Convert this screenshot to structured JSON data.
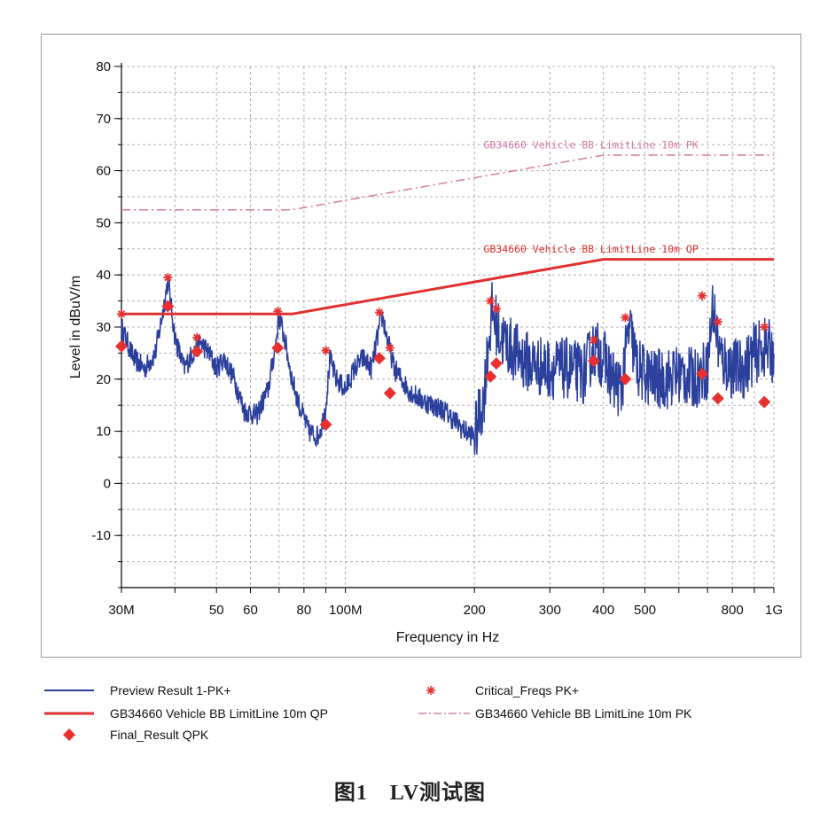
{
  "chart_data": {
    "type": "line",
    "x_scale": "log",
    "xlabel": "Frequency in Hz",
    "ylabel": "Level in dBuV/m",
    "xlim_hz": [
      30000000,
      1000000000
    ],
    "ylim": [
      -20,
      80
    ],
    "y_ticks": [
      80,
      70,
      60,
      50,
      40,
      30,
      20,
      10,
      0,
      -10
    ],
    "x_ticks": [
      {
        "hz": 30000000,
        "label": "30M"
      },
      {
        "hz": 50000000,
        "label": "50"
      },
      {
        "hz": 60000000,
        "label": "60"
      },
      {
        "hz": 80000000,
        "label": "80"
      },
      {
        "hz": 100000000,
        "label": "100M"
      },
      {
        "hz": 200000000,
        "label": "200"
      },
      {
        "hz": 300000000,
        "label": "300"
      },
      {
        "hz": 400000000,
        "label": "400"
      },
      {
        "hz": 500000000,
        "label": "500"
      },
      {
        "hz": 800000000,
        "label": "800"
      },
      {
        "hz": 1000000000,
        "label": "1G"
      }
    ],
    "grid": true,
    "colors": {
      "preview": "#2b3f9c",
      "limit_qp": "#e03030",
      "limit_pk": "#d47aa8",
      "markers": "#e83030"
    },
    "series": [
      {
        "name": "Preview Result 1-PK+",
        "style": "noisy-line",
        "x_mhz": [
          30,
          32,
          34,
          36,
          37.5,
          38.5,
          40,
          42,
          44,
          46,
          48,
          50,
          52,
          55,
          58,
          62,
          66,
          68.5,
          70,
          72,
          75,
          78,
          82,
          86,
          88,
          90,
          92,
          95,
          100,
          105,
          110,
          115,
          120,
          122,
          125,
          130,
          135,
          140,
          150,
          160,
          170,
          180,
          190,
          200,
          210,
          215,
          220,
          230,
          250,
          270,
          300,
          330,
          360,
          380,
          400,
          420,
          440,
          460,
          480,
          520,
          560,
          600,
          650,
          700,
          720,
          750,
          800,
          850,
          900,
          950,
          1000
        ],
        "y": [
          30,
          24,
          22,
          25,
          33,
          39,
          28,
          22,
          25,
          27,
          25,
          22,
          24,
          20,
          14,
          13,
          18,
          26,
          32,
          28,
          20,
          15,
          10,
          9,
          11,
          15,
          24,
          20,
          18,
          22,
          24,
          22,
          30,
          32,
          28,
          22,
          20,
          18,
          16,
          15,
          14,
          12,
          10,
          9,
          16,
          26,
          33,
          28,
          25,
          23,
          22,
          22,
          21,
          26,
          24,
          20,
          18,
          30,
          22,
          20,
          20,
          21,
          20,
          22,
          34,
          24,
          22,
          22,
          25,
          26,
          25
        ]
      },
      {
        "name": "GB34660 Vehicle BB LimitLine 10m QP",
        "x_mhz": [
          30,
          75,
          400,
          1000
        ],
        "y": [
          32.5,
          32.5,
          43,
          43
        ]
      },
      {
        "name": "GB34660 Vehicle BB LimitLine 10m PK",
        "x_mhz": [
          30,
          75,
          400,
          1000
        ],
        "y": [
          52.5,
          52.5,
          63,
          63
        ]
      },
      {
        "name": "Critical_Freqs PK+",
        "style": "asterisk",
        "x_mhz": [
          30,
          38.5,
          45,
          69.5,
          90,
          120,
          127,
          218,
          225,
          380,
          450,
          680,
          740,
          950
        ],
        "y": [
          32.5,
          39.5,
          28,
          33,
          25.5,
          32.8,
          26,
          35,
          33.5,
          27.5,
          31.8,
          36,
          31,
          30
        ]
      },
      {
        "name": "Final_Result QPK",
        "style": "diamond",
        "x_mhz": [
          30,
          38.5,
          45,
          69.5,
          90,
          120,
          127,
          218,
          225,
          380,
          450,
          680,
          740,
          950
        ],
        "y": [
          26.3,
          34,
          25.3,
          26,
          11.3,
          24,
          17.3,
          20.5,
          23,
          23.5,
          20,
          21,
          16.3,
          15.6
        ]
      }
    ],
    "annotations": [
      {
        "text": "GB34660 Vehicle BB LimitLine 10m PK",
        "anchor_mhz": 210,
        "y": 64.3,
        "color": "#d47aa8"
      },
      {
        "text": "GB34660 Vehicle BB LimitLine 10m QP",
        "anchor_mhz": 210,
        "y": 44.3,
        "color": "#e03030"
      }
    ]
  },
  "legend": {
    "items": [
      {
        "label": "Preview Result 1-PK+"
      },
      {
        "label": "Critical_Freqs PK+"
      },
      {
        "label": "GB34660 Vehicle BB LimitLine 10m QP"
      },
      {
        "label": "GB34660 Vehicle BB LimitLine 10m PK"
      },
      {
        "label": "Final_Result QPK"
      }
    ]
  },
  "caption": "图1　LV测试图"
}
